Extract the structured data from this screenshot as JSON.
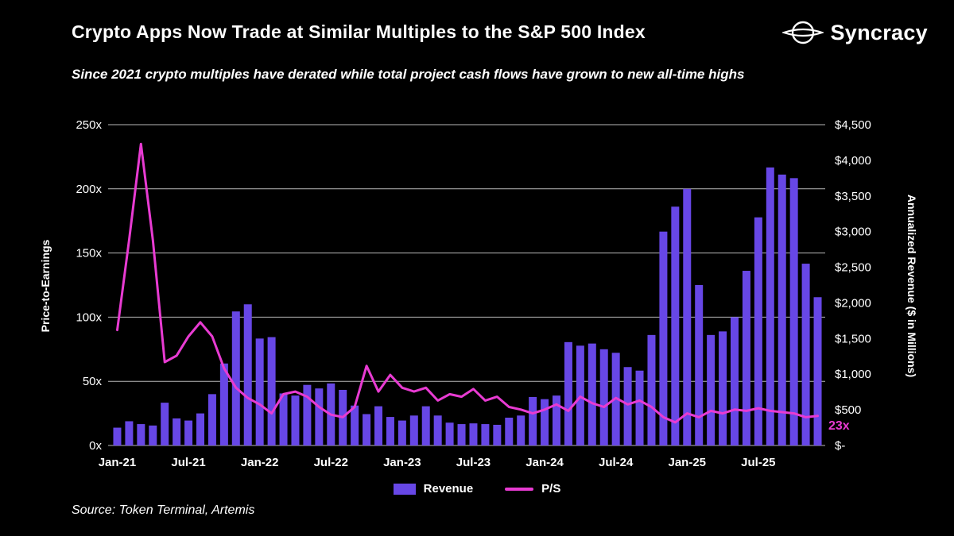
{
  "header": {
    "title": "Crypto Apps Now Trade at Similar Multiples to the S&P 500 Index",
    "subtitle": "Since 2021 crypto multiples have derated while total project cash flows have grown to new all-time highs",
    "brand": "Syncracy"
  },
  "footer": {
    "source": "Source: Token Terminal, Artemis"
  },
  "chart_data": {
    "type": "combo",
    "background": "#000000",
    "grid_color": "#b8b8b8",
    "grid": true,
    "legend_position": "bottom-center",
    "left_axis": {
      "label": "Price-to-Earnings",
      "min": 0,
      "max": 250,
      "ticks": [
        "0x",
        "50x",
        "100x",
        "150x",
        "200x",
        "250x"
      ]
    },
    "right_axis": {
      "label": "Annualized Revenue ($ in Millions)",
      "min": 0,
      "max": 4500,
      "ticks": [
        "$-",
        "$500",
        "$1,000",
        "$1,500",
        "$2,000",
        "$2,500",
        "$3,000",
        "$3,500",
        "$4,000",
        "$4,500"
      ]
    },
    "x_ticks": [
      "Jan-21",
      "Jul-21",
      "Jan-22",
      "Jul-22",
      "Jan-23",
      "Jul-23",
      "Jan-24",
      "Jul-24",
      "Jan-25",
      "Jul-25"
    ],
    "categories": [
      "Jan-21",
      "Feb-21",
      "Mar-21",
      "Apr-21",
      "May-21",
      "Jun-21",
      "Jul-21",
      "Aug-21",
      "Sep-21",
      "Oct-21",
      "Nov-21",
      "Dec-21",
      "Jan-22",
      "Feb-22",
      "Mar-22",
      "Apr-22",
      "May-22",
      "Jun-22",
      "Jul-22",
      "Aug-22",
      "Sep-22",
      "Oct-22",
      "Nov-22",
      "Dec-22",
      "Jan-23",
      "Feb-23",
      "Mar-23",
      "Apr-23",
      "May-23",
      "Jun-23",
      "Jul-23",
      "Aug-23",
      "Sep-23",
      "Oct-23",
      "Nov-23",
      "Dec-23",
      "Jan-24",
      "Feb-24",
      "Mar-24",
      "Apr-24",
      "May-24",
      "Jun-24",
      "Jul-24",
      "Aug-24",
      "Sep-24",
      "Oct-24",
      "Nov-24",
      "Dec-24",
      "Jan-25",
      "Feb-25",
      "Mar-25",
      "Apr-25",
      "May-25",
      "Jun-25",
      "Jul-25",
      "Aug-25",
      "Sep-25",
      "Oct-25",
      "Nov-25",
      "Dec-25"
    ],
    "series": [
      {
        "name": "Revenue",
        "type": "bar",
        "axis": "right",
        "color": "#6747e6",
        "values": [
          250,
          340,
          300,
          280,
          600,
          380,
          350,
          450,
          720,
          1150,
          1880,
          1980,
          1500,
          1520,
          730,
          700,
          850,
          800,
          870,
          780,
          560,
          440,
          550,
          400,
          350,
          420,
          550,
          420,
          320,
          300,
          310,
          300,
          290,
          390,
          420,
          680,
          650,
          700,
          1450,
          1400,
          1430,
          1350,
          1300,
          1100,
          1050,
          1550,
          3000,
          3350,
          3600,
          2250,
          1550,
          1600,
          1800,
          2450,
          3200,
          3900,
          3800,
          3750,
          2550,
          2080
        ]
      },
      {
        "name": "P/S",
        "type": "line",
        "axis": "left",
        "color": "#e83bd2",
        "values": [
          90,
          160,
          235,
          160,
          65,
          70,
          85,
          96,
          85,
          60,
          45,
          37,
          32,
          25,
          40,
          42,
          38,
          30,
          24,
          22,
          30,
          62,
          42,
          55,
          45,
          42,
          45,
          35,
          40,
          38,
          44,
          35,
          38,
          30,
          28,
          25,
          28,
          32,
          27,
          38,
          33,
          30,
          37,
          32,
          35,
          30,
          22,
          18,
          25,
          22,
          27,
          25,
          28,
          27,
          29,
          27,
          26,
          25,
          22,
          23
        ]
      }
    ],
    "annotation": {
      "text": "23x",
      "color": "#e83bd2"
    }
  }
}
